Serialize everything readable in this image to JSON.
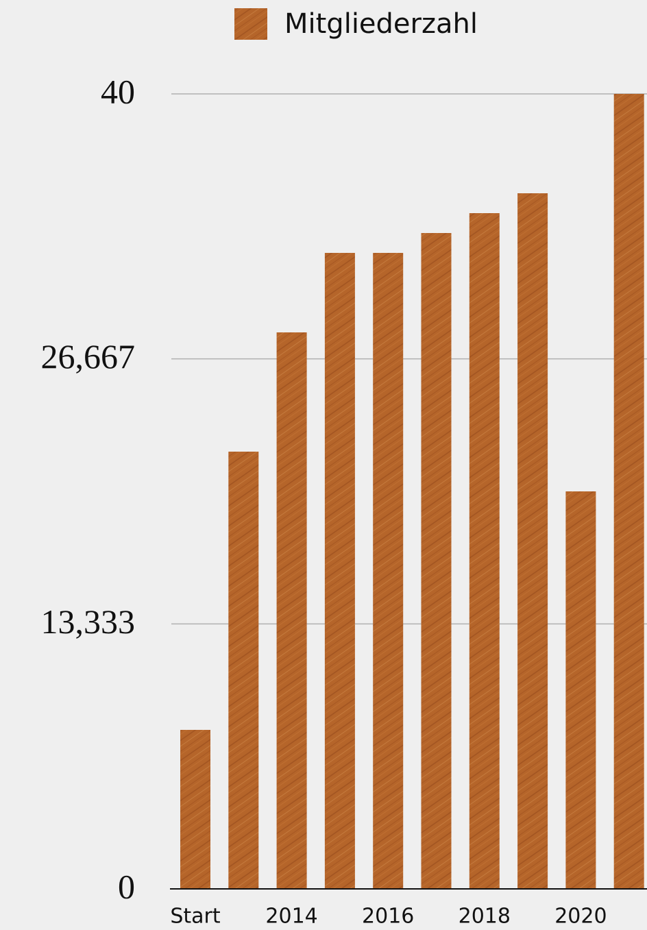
{
  "chart_data": {
    "type": "bar",
    "legend": "Mitgliederzahl",
    "categories": [
      "Start",
      null,
      "2014",
      null,
      "2016",
      null,
      "2018",
      null,
      "2020",
      null
    ],
    "values": [
      8,
      22,
      28,
      32,
      32,
      33,
      34,
      35,
      20,
      40
    ],
    "color": "#b5652a",
    "ylim": [
      0,
      40
    ],
    "yticks": [
      0,
      {
        "value": 13.333,
        "label": "13,333"
      },
      {
        "value": 26.667,
        "label": "26,667"
      },
      40
    ],
    "grid": true
  }
}
